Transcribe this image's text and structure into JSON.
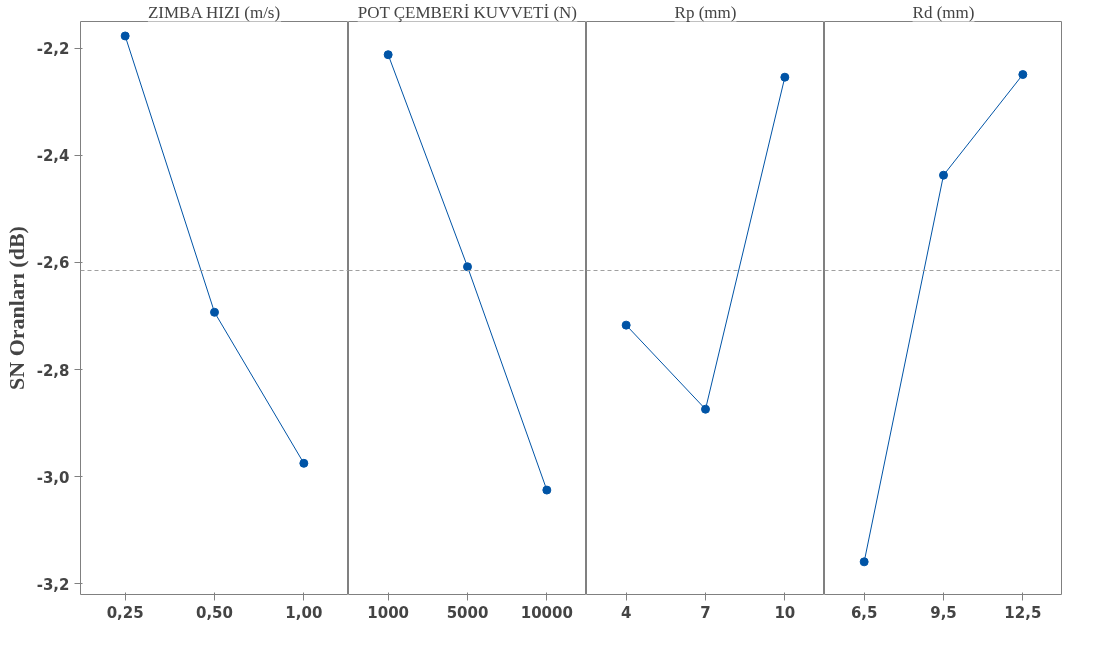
{
  "chart_data": [
    {
      "type": "line",
      "title": "ZIMBA HIZI (m/s)",
      "ylabel": "SN Oranları (dB)",
      "categories": [
        "0,25",
        "0,50",
        "1,00"
      ],
      "series": [
        {
          "color": "#0054a6",
          "values": [
            -2.177,
            -2.693,
            -2.975
          ]
        }
      ],
      "ylim": [
        -3.22,
        -2.15
      ],
      "yticks": [
        {
          "value": -3.2,
          "label": "-3,2"
        },
        {
          "value": -3.0,
          "label": "-3,0"
        },
        {
          "value": -2.8,
          "label": "-2,8"
        },
        {
          "value": -2.6,
          "label": "-2,6"
        },
        {
          "value": -2.4,
          "label": "-2,4"
        },
        {
          "value": -2.2,
          "label": "-2,2"
        }
      ],
      "ref_lines": [
        {
          "axis": "y",
          "value": -2.615,
          "color": "#a0a0a0",
          "line_style": "dashed"
        }
      ],
      "grid": false,
      "marker": "circle",
      "line_style": "solid"
    },
    {
      "type": "line",
      "title": "POT ÇEMBERİ KUVVETİ (N)",
      "categories": [
        "1000",
        "5000",
        "10000"
      ],
      "series": [
        {
          "color": "#0054a6",
          "values": [
            -2.212,
            -2.608,
            -3.025
          ]
        }
      ],
      "ylim": [
        -3.22,
        -2.15
      ],
      "tick_labels": "x",
      "ref_lines": [
        {
          "axis": "y",
          "value": -2.615,
          "color": "#a0a0a0",
          "line_style": "dashed"
        }
      ],
      "grid": false,
      "marker": "circle",
      "line_style": "solid"
    },
    {
      "type": "line",
      "title": "Rp (mm)",
      "categories": [
        "4",
        "7",
        "10"
      ],
      "series": [
        {
          "color": "#0054a6",
          "values": [
            -2.717,
            -2.874,
            -2.254
          ]
        }
      ],
      "ylim": [
        -3.22,
        -2.15
      ],
      "tick_labels": "x",
      "ref_lines": [
        {
          "axis": "y",
          "value": -2.615,
          "color": "#a0a0a0",
          "line_style": "dashed"
        }
      ],
      "grid": false,
      "marker": "circle",
      "line_style": "solid"
    },
    {
      "type": "line",
      "title": "Rd (mm)",
      "categories": [
        "6,5",
        "9,5",
        "12,5"
      ],
      "series": [
        {
          "color": "#0054a6",
          "values": [
            -3.159,
            -2.437,
            -2.249
          ]
        }
      ],
      "ylim": [
        -3.22,
        -2.15
      ],
      "tick_labels": "x",
      "ref_lines": [
        {
          "axis": "y",
          "value": -2.615,
          "color": "#a0a0a0",
          "line_style": "dashed"
        }
      ],
      "grid": false,
      "marker": "circle",
      "line_style": "solid"
    }
  ]
}
